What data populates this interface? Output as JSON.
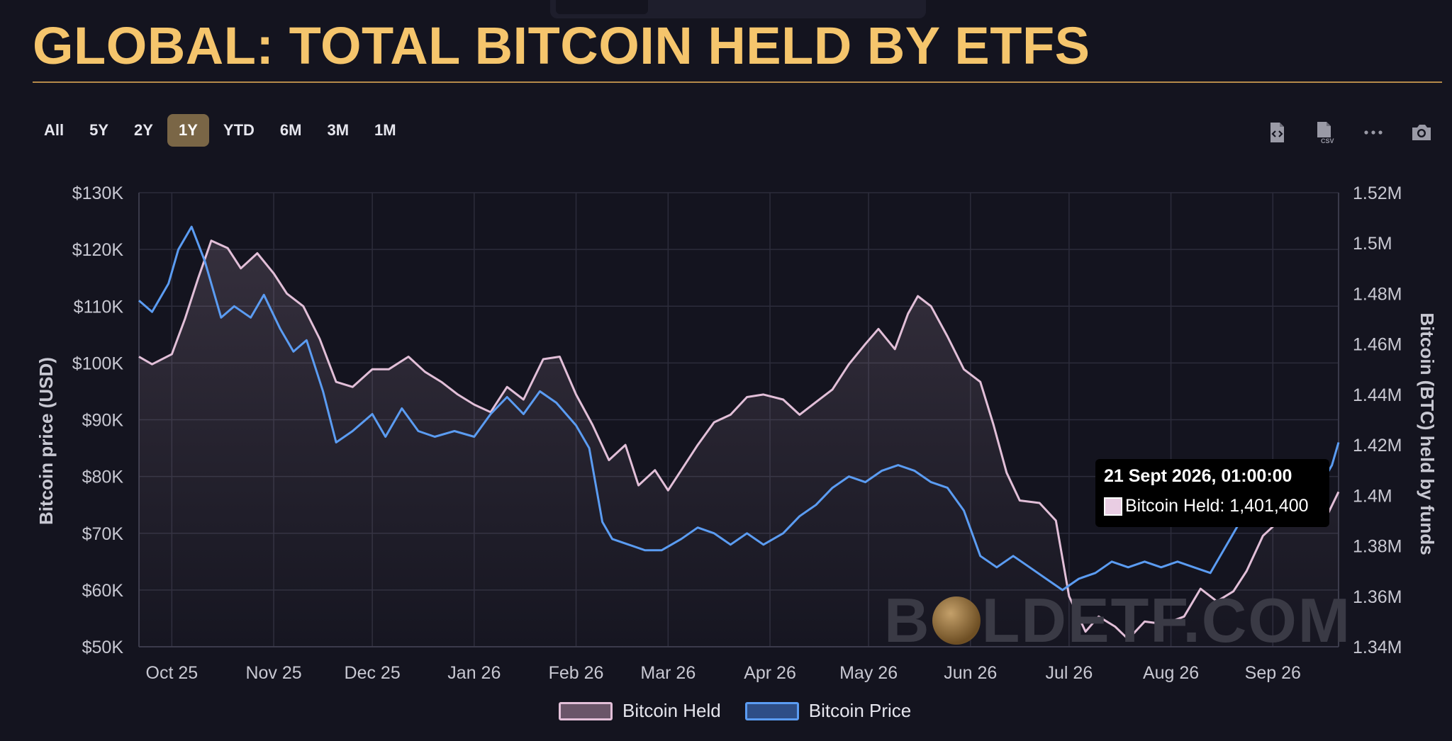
{
  "title": "GLOBAL: TOTAL BITCOIN HELD BY ETFS",
  "range_buttons": [
    {
      "label": "All",
      "active": false
    },
    {
      "label": "5Y",
      "active": false
    },
    {
      "label": "2Y",
      "active": false
    },
    {
      "label": "1Y",
      "active": true
    },
    {
      "label": "YTD",
      "active": false
    },
    {
      "label": "6M",
      "active": false
    },
    {
      "label": "3M",
      "active": false
    },
    {
      "label": "1M",
      "active": false
    }
  ],
  "toolbar": {
    "icons": [
      "export-code-icon",
      "export-csv-icon",
      "more-options-icon",
      "camera-icon"
    ],
    "csv_label": "CSV"
  },
  "tooltip": {
    "date": "21 Sept 2026, 01:00:00",
    "series": "Bitcoin Held",
    "value": "1,401,400",
    "label": "Bitcoin Held: 1,401,400"
  },
  "watermark": {
    "left": "B",
    "right": "LDETF.COM"
  },
  "colors": {
    "held": "#e2bfd8",
    "price": "#5b9cf2",
    "accent": "#f5c56c",
    "active_button": "#7a6646"
  },
  "chart_data": {
    "type": "line",
    "x_labels": [
      "Oct 25",
      "Nov 25",
      "Dec 25",
      "Jan 26",
      "Feb 26",
      "Mar 26",
      "Apr 26",
      "May 26",
      "Jun 26",
      "Jul 26",
      "Aug 26",
      "Sep 26"
    ],
    "left_axis": {
      "title": "Bitcoin price (USD)",
      "ticks": [
        "$130K",
        "$120K",
        "$110K",
        "$100K",
        "$90K",
        "$80K",
        "$70K",
        "$60K",
        "$50K"
      ],
      "range": [
        50000,
        130000
      ]
    },
    "right_axis": {
      "title": "Bitcoin (BTC) held by funds",
      "ticks": [
        "1.52M",
        "1.5M",
        "1.48M",
        "1.46M",
        "1.44M",
        "1.42M",
        "1.4M",
        "1.38M",
        "1.36M",
        "1.34M"
      ],
      "range": [
        1340000,
        1520000
      ]
    },
    "series": [
      {
        "name": "Bitcoin Held",
        "axis": "right",
        "points": [
          [
            "2025-09-21",
            1455000
          ],
          [
            "2025-09-25",
            1452000
          ],
          [
            "2025-10-01",
            1456000
          ],
          [
            "2025-10-05",
            1470000
          ],
          [
            "2025-10-09",
            1486000
          ],
          [
            "2025-10-13",
            1501000
          ],
          [
            "2025-10-18",
            1498000
          ],
          [
            "2025-10-22",
            1490000
          ],
          [
            "2025-10-27",
            1496000
          ],
          [
            "2025-11-01",
            1488000
          ],
          [
            "2025-11-05",
            1480000
          ],
          [
            "2025-11-10",
            1475000
          ],
          [
            "2025-11-15",
            1462000
          ],
          [
            "2025-11-20",
            1445000
          ],
          [
            "2025-11-25",
            1443000
          ],
          [
            "2025-12-01",
            1450000
          ],
          [
            "2025-12-06",
            1450000
          ],
          [
            "2025-12-12",
            1455000
          ],
          [
            "2025-12-17",
            1449000
          ],
          [
            "2025-12-22",
            1445000
          ],
          [
            "2025-12-27",
            1440000
          ],
          [
            "2026-01-01",
            1436000
          ],
          [
            "2026-01-06",
            1433000
          ],
          [
            "2026-01-11",
            1443000
          ],
          [
            "2026-01-16",
            1438000
          ],
          [
            "2026-01-22",
            1454000
          ],
          [
            "2026-01-27",
            1455000
          ],
          [
            "2026-02-01",
            1440000
          ],
          [
            "2026-02-06",
            1428000
          ],
          [
            "2026-02-11",
            1414000
          ],
          [
            "2026-02-16",
            1420000
          ],
          [
            "2026-02-20",
            1404000
          ],
          [
            "2026-02-25",
            1410000
          ],
          [
            "2026-03-01",
            1402000
          ],
          [
            "2026-03-05",
            1410000
          ],
          [
            "2026-03-10",
            1420000
          ],
          [
            "2026-03-15",
            1429000
          ],
          [
            "2026-03-20",
            1432000
          ],
          [
            "2026-03-25",
            1439000
          ],
          [
            "2026-03-30",
            1440000
          ],
          [
            "2026-04-05",
            1438000
          ],
          [
            "2026-04-10",
            1432000
          ],
          [
            "2026-04-15",
            1437000
          ],
          [
            "2026-04-20",
            1442000
          ],
          [
            "2026-04-25",
            1452000
          ],
          [
            "2026-04-30",
            1460000
          ],
          [
            "2026-05-04",
            1466000
          ],
          [
            "2026-05-09",
            1458000
          ],
          [
            "2026-05-13",
            1472000
          ],
          [
            "2026-05-16",
            1479000
          ],
          [
            "2026-05-20",
            1475000
          ],
          [
            "2026-05-25",
            1463000
          ],
          [
            "2026-05-30",
            1450000
          ],
          [
            "2026-06-04",
            1445000
          ],
          [
            "2026-06-08",
            1428000
          ],
          [
            "2026-06-12",
            1409000
          ],
          [
            "2026-06-16",
            1398000
          ],
          [
            "2026-06-22",
            1397000
          ],
          [
            "2026-06-27",
            1390000
          ],
          [
            "2026-07-01",
            1360000
          ],
          [
            "2026-07-06",
            1346000
          ],
          [
            "2026-07-10",
            1352000
          ],
          [
            "2026-07-15",
            1348000
          ],
          [
            "2026-07-19",
            1343000
          ],
          [
            "2026-07-24",
            1350000
          ],
          [
            "2026-07-30",
            1349000
          ],
          [
            "2026-08-05",
            1352000
          ],
          [
            "2026-08-10",
            1363000
          ],
          [
            "2026-08-15",
            1358000
          ],
          [
            "2026-08-20",
            1362000
          ],
          [
            "2026-08-24",
            1370000
          ],
          [
            "2026-08-29",
            1384000
          ],
          [
            "2026-09-03",
            1390000
          ],
          [
            "2026-09-08",
            1389000
          ],
          [
            "2026-09-13",
            1392000
          ],
          [
            "2026-09-16",
            1388000
          ],
          [
            "2026-09-21",
            1401400
          ]
        ]
      },
      {
        "name": "Bitcoin Price",
        "axis": "left",
        "points": [
          [
            "2025-09-21",
            111000
          ],
          [
            "2025-09-25",
            109000
          ],
          [
            "2025-09-30",
            114000
          ],
          [
            "2025-10-03",
            120000
          ],
          [
            "2025-10-07",
            124000
          ],
          [
            "2025-10-11",
            118000
          ],
          [
            "2025-10-16",
            108000
          ],
          [
            "2025-10-20",
            110000
          ],
          [
            "2025-10-25",
            108000
          ],
          [
            "2025-10-29",
            112000
          ],
          [
            "2025-11-03",
            106000
          ],
          [
            "2025-11-07",
            102000
          ],
          [
            "2025-11-11",
            104000
          ],
          [
            "2025-11-16",
            95000
          ],
          [
            "2025-11-20",
            86000
          ],
          [
            "2025-11-25",
            88000
          ],
          [
            "2025-12-01",
            91000
          ],
          [
            "2025-12-05",
            87000
          ],
          [
            "2025-12-10",
            92000
          ],
          [
            "2025-12-15",
            88000
          ],
          [
            "2025-12-20",
            87000
          ],
          [
            "2025-12-26",
            88000
          ],
          [
            "2026-01-01",
            87000
          ],
          [
            "2026-01-06",
            91000
          ],
          [
            "2026-01-11",
            94000
          ],
          [
            "2026-01-16",
            91000
          ],
          [
            "2026-01-21",
            95000
          ],
          [
            "2026-01-26",
            93000
          ],
          [
            "2026-02-01",
            89000
          ],
          [
            "2026-02-05",
            85000
          ],
          [
            "2026-02-09",
            72000
          ],
          [
            "2026-02-12",
            69000
          ],
          [
            "2026-02-17",
            68000
          ],
          [
            "2026-02-22",
            67000
          ],
          [
            "2026-02-27",
            67000
          ],
          [
            "2026-03-05",
            69000
          ],
          [
            "2026-03-10",
            71000
          ],
          [
            "2026-03-15",
            70000
          ],
          [
            "2026-03-20",
            68000
          ],
          [
            "2026-03-25",
            70000
          ],
          [
            "2026-03-30",
            68000
          ],
          [
            "2026-04-05",
            70000
          ],
          [
            "2026-04-10",
            73000
          ],
          [
            "2026-04-15",
            75000
          ],
          [
            "2026-04-20",
            78000
          ],
          [
            "2026-04-25",
            80000
          ],
          [
            "2026-04-30",
            79000
          ],
          [
            "2026-05-05",
            81000
          ],
          [
            "2026-05-10",
            82000
          ],
          [
            "2026-05-15",
            81000
          ],
          [
            "2026-05-20",
            79000
          ],
          [
            "2026-05-25",
            78000
          ],
          [
            "2026-05-30",
            74000
          ],
          [
            "2026-06-04",
            66000
          ],
          [
            "2026-06-09",
            64000
          ],
          [
            "2026-06-14",
            66000
          ],
          [
            "2026-06-19",
            64000
          ],
          [
            "2026-06-24",
            62000
          ],
          [
            "2026-06-29",
            60000
          ],
          [
            "2026-07-04",
            62000
          ],
          [
            "2026-07-09",
            63000
          ],
          [
            "2026-07-14",
            65000
          ],
          [
            "2026-07-19",
            64000
          ],
          [
            "2026-07-24",
            65000
          ],
          [
            "2026-07-29",
            64000
          ],
          [
            "2026-08-03",
            65000
          ],
          [
            "2026-08-08",
            64000
          ],
          [
            "2026-08-13",
            63000
          ],
          [
            "2026-08-18",
            68000
          ],
          [
            "2026-08-23",
            73000
          ],
          [
            "2026-08-28",
            76000
          ],
          [
            "2026-09-02",
            79000
          ],
          [
            "2026-09-06",
            78000
          ],
          [
            "2026-09-11",
            81000
          ],
          [
            "2026-09-16",
            79000
          ],
          [
            "2026-09-19",
            82000
          ],
          [
            "2026-09-21",
            86000
          ]
        ]
      }
    ],
    "legend": [
      "Bitcoin Held",
      "Bitcoin Price"
    ],
    "legend_position": "bottom-center",
    "grid": true
  }
}
